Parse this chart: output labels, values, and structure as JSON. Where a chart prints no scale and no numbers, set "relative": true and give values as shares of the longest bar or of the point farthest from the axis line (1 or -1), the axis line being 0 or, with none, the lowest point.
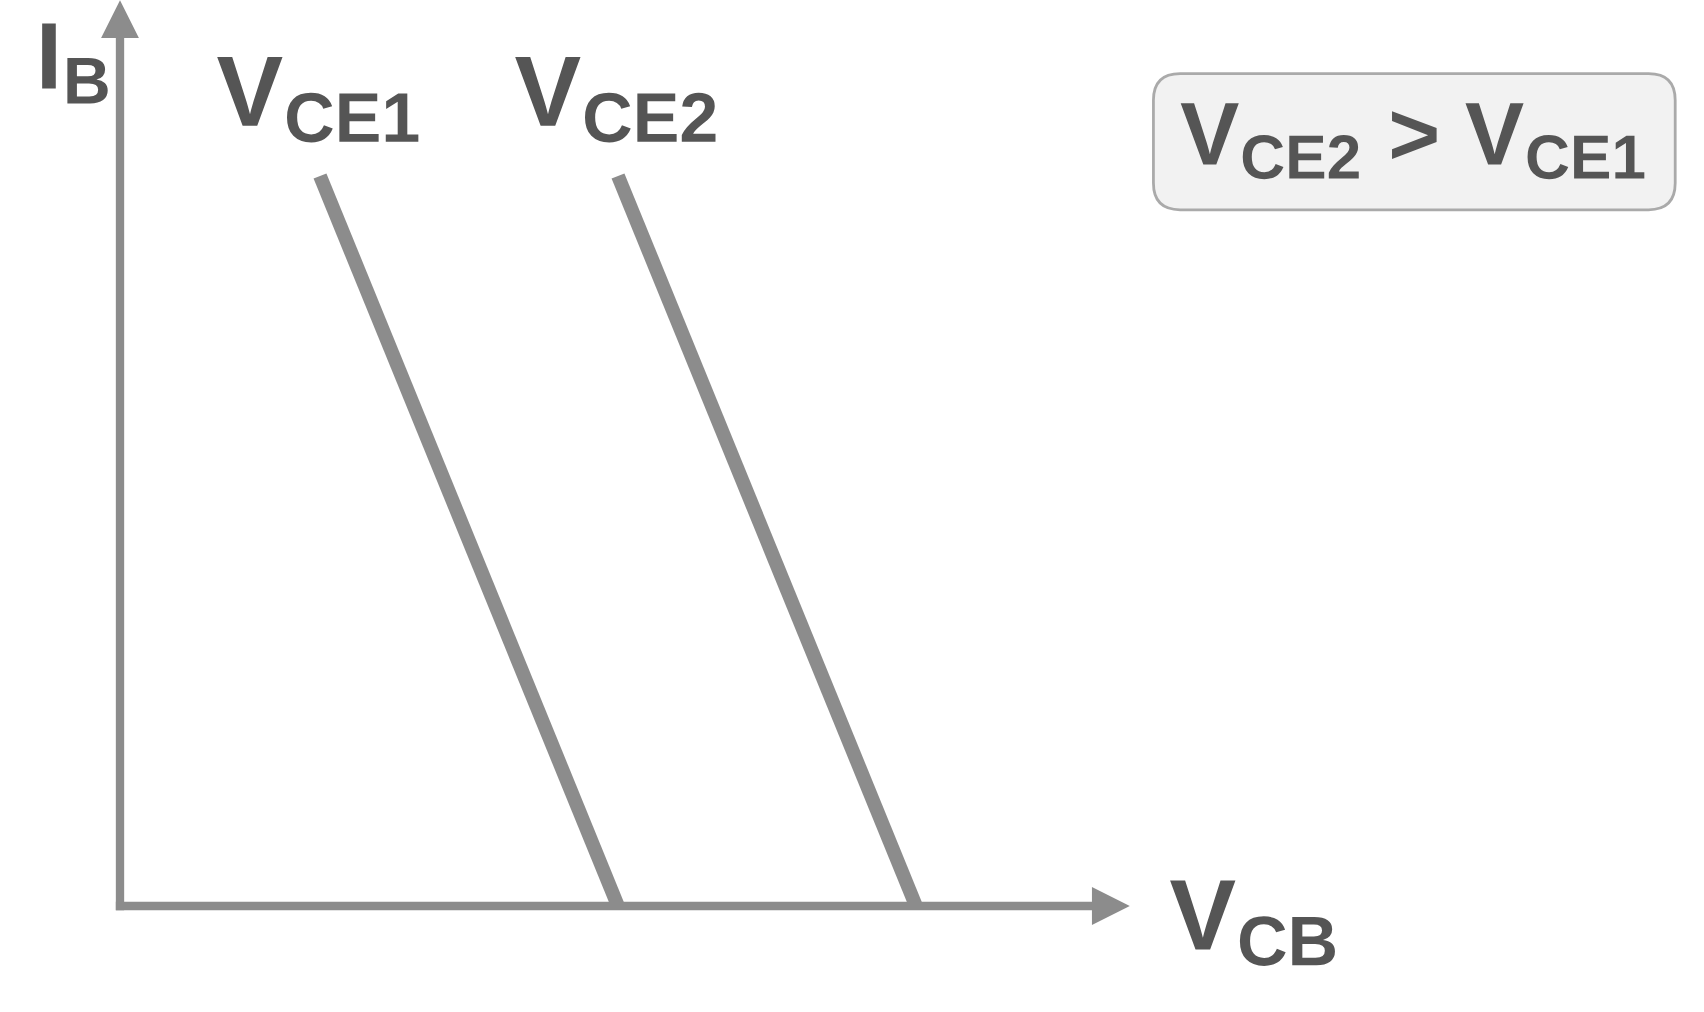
{
  "chart_data": {
    "type": "line",
    "relative": true,
    "xlabel": "V$_{CB}$",
    "ylabel": "I$_{B}$",
    "categories": [
      null,
      null,
      null
    ],
    "series": [
      {
        "name": "V$_{CE1}$",
        "color": "#8c8c8c",
        "values": [
          1,
          0,
          null
        ]
      },
      {
        "name": "V$_{CE2}$",
        "color": "#8c8c8c",
        "values": [
          null,
          1,
          0
        ]
      }
    ],
    "annotations": [
      "V$_{CE2}$ > V$_{CE1}$"
    ],
    "tick_labels": false,
    "marker": "none",
    "line_style": "solid"
  }
}
